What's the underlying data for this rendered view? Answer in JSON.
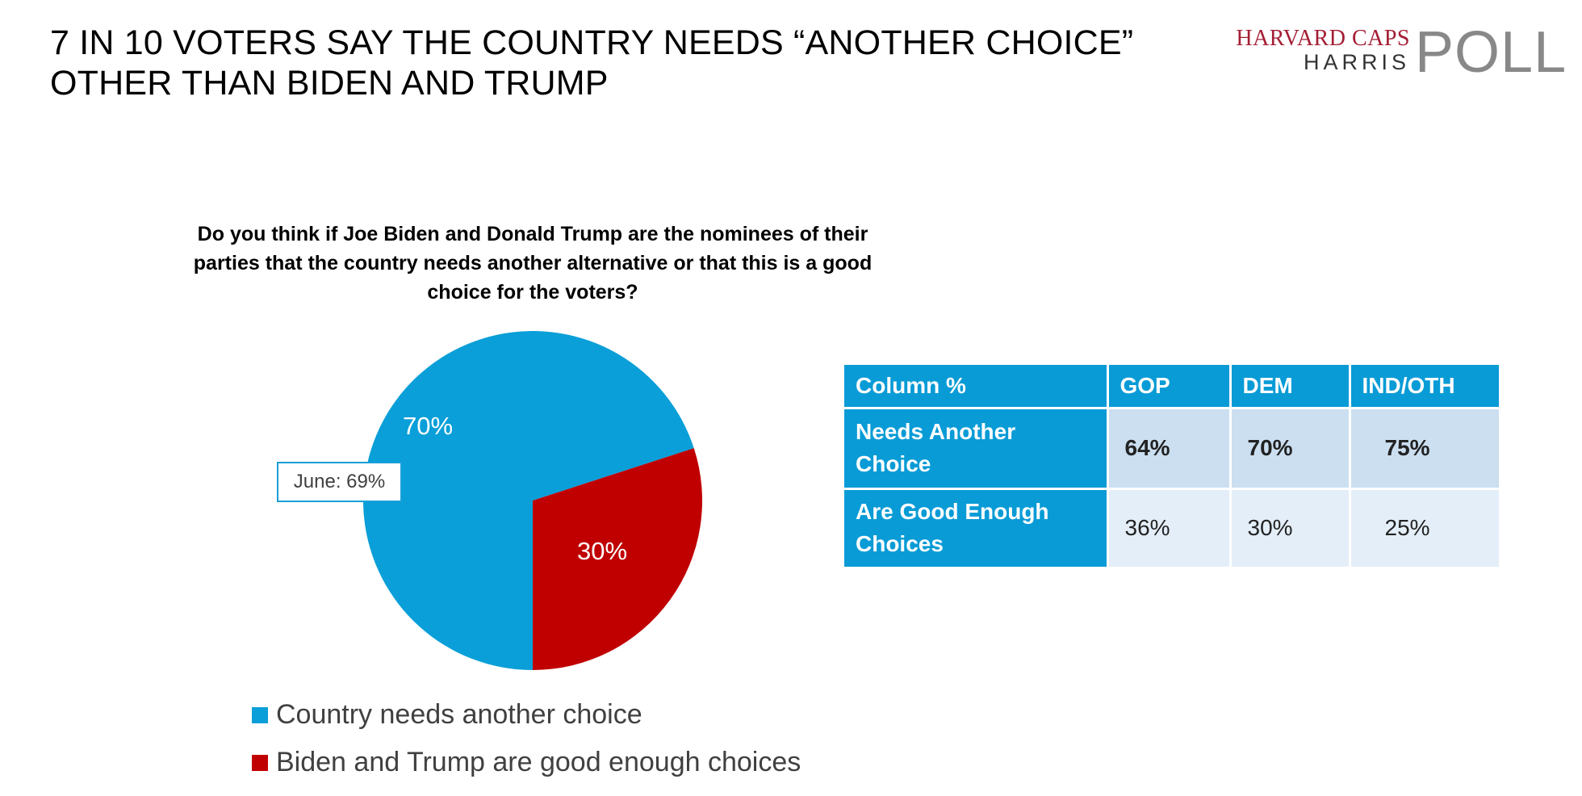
{
  "title": {
    "line1": "7 IN 10 VOTERS SAY THE COUNTRY NEEDS “ANOTHER CHOICE”",
    "line2": "OTHER THAN BIDEN AND TRUMP"
  },
  "logo": {
    "line1": "HARVARD CAPS",
    "line2": "HARRIS",
    "line3": "POLL"
  },
  "chart_data": {
    "type": "pie",
    "question": "Do you think if Joe Biden and Donald Trump are the nominees of their parties that the country needs another alternative or that this is a good choice for the voters?",
    "slices": [
      {
        "name": "Country needs another choice",
        "value": 70,
        "label": "70%",
        "color": "#0a9fd8"
      },
      {
        "name": "Biden and Trump are good enough choices",
        "value": 30,
        "label": "30%",
        "color": "#c00000"
      }
    ],
    "annotation": "June: 69%",
    "legend": "bottom-left"
  },
  "table": {
    "headers": [
      "Column %",
      "GOP",
      "DEM",
      "IND/OTH"
    ],
    "rows": [
      {
        "label_line1": "Needs Another",
        "label_line2": "Choice",
        "values": [
          "64%",
          "70%",
          "75%"
        ]
      },
      {
        "label_line1": "Are Good Enough",
        "label_line2": "Choices",
        "values": [
          "36%",
          "30%",
          "25%"
        ]
      }
    ]
  },
  "colors": {
    "blue": "#0a9fd8",
    "red": "#c00000",
    "header_blue": "#089bd6"
  }
}
